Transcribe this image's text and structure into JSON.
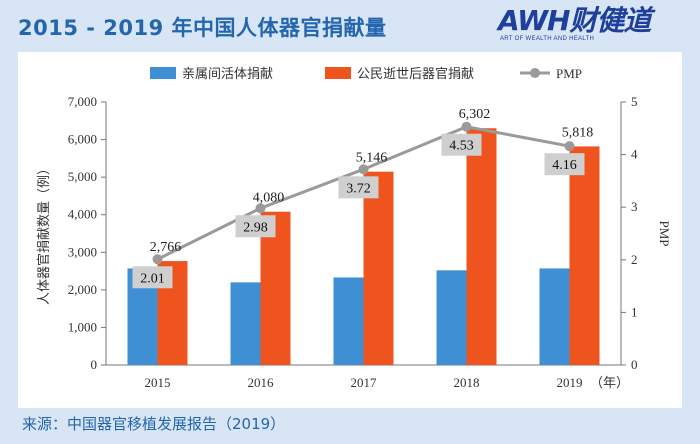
{
  "header": {
    "title": "2015 - 2019 年中国人体器官捐献量",
    "brand_name": "AWH财健道",
    "brand_subtitle": "ART OF WEALTH AND HEALTH"
  },
  "source_note": "来源：中国器官移植发展报告（2019）",
  "chart_data": {
    "type": "bar",
    "categories": [
      "2015",
      "2016",
      "2017",
      "2018",
      "2019"
    ],
    "x_unit_label": "（年）",
    "series": [
      {
        "name": "亲属间活体捐献",
        "kind": "bar",
        "axis": "left",
        "color": "#3e8fd4",
        "values": [
          2570,
          2200,
          2330,
          2520,
          2570
        ]
      },
      {
        "name": "公民逝世后器官捐献",
        "kind": "bar",
        "axis": "left",
        "color": "#f0541e",
        "values": [
          2766,
          4080,
          5146,
          6302,
          5818
        ],
        "labels": [
          "2,766",
          "4,080",
          "5,146",
          "6,302",
          "5,818"
        ]
      },
      {
        "name": "PMP",
        "kind": "line",
        "axis": "right",
        "color": "#9a9a9a",
        "values": [
          2.01,
          2.98,
          3.72,
          4.53,
          4.16
        ],
        "labels": [
          "2.01",
          "2.98",
          "3.72",
          "4.53",
          "4.16"
        ]
      }
    ],
    "ylabel_left": "人体器官捐献数量（例）",
    "ylabel_right": "PMP",
    "ylim_left": [
      0,
      7000
    ],
    "ylim_right": [
      0,
      5
    ],
    "yticks_left": [
      "0",
      "1,000",
      "2,000",
      "3,000",
      "4,000",
      "5,000",
      "6,000",
      "7,000"
    ],
    "yticks_right": [
      "0",
      "1",
      "2",
      "3",
      "4",
      "5"
    ],
    "legend_position": "top"
  }
}
